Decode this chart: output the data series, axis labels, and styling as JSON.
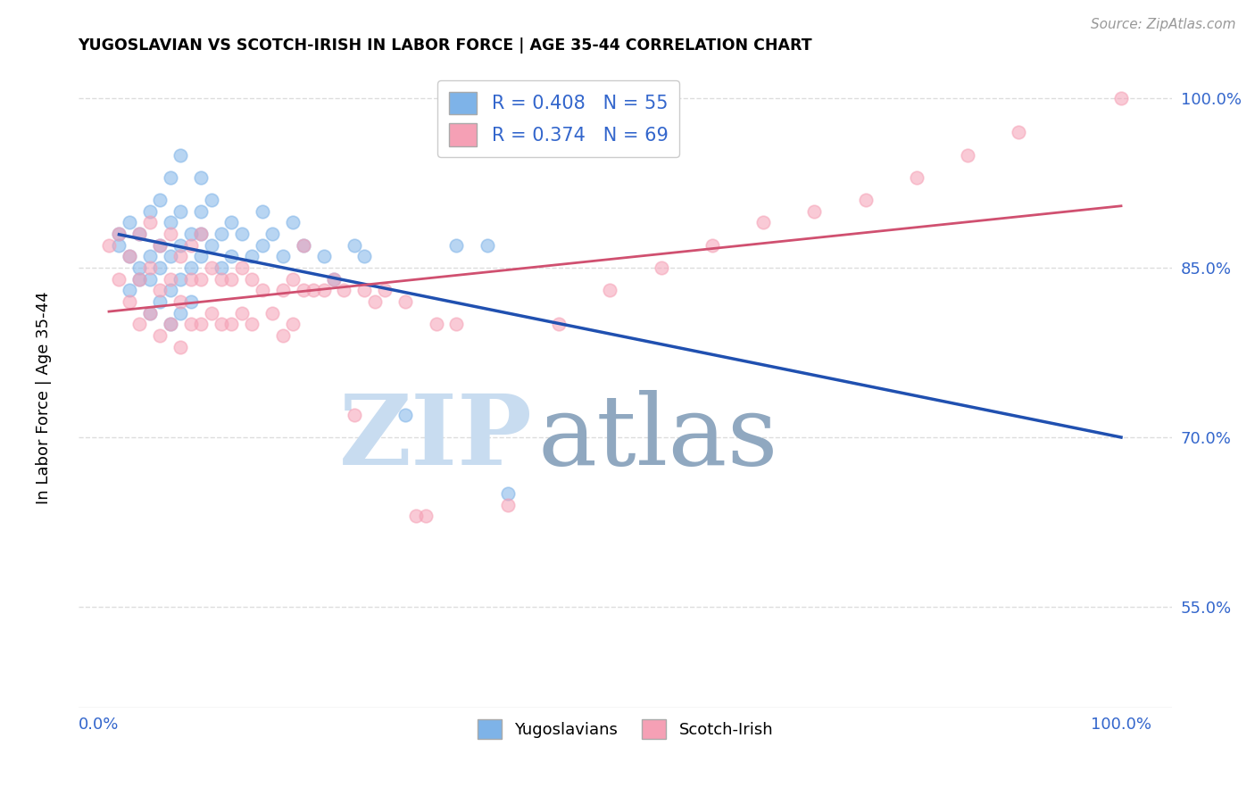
{
  "title": "YUGOSLAVIAN VS SCOTCH-IRISH IN LABOR FORCE | AGE 35-44 CORRELATION CHART",
  "source": "Source: ZipAtlas.com",
  "ylabel": "In Labor Force | Age 35-44",
  "r_blue": 0.408,
  "n_blue": 55,
  "r_pink": 0.374,
  "n_pink": 69,
  "blue_color": "#7EB3E8",
  "pink_color": "#F5A0B5",
  "blue_line_color": "#2050B0",
  "pink_line_color": "#D05070",
  "watermark_zip": "ZIP",
  "watermark_atlas": "atlas",
  "blue_scatter_x": [
    0.02,
    0.02,
    0.03,
    0.03,
    0.03,
    0.04,
    0.04,
    0.04,
    0.05,
    0.05,
    0.05,
    0.05,
    0.06,
    0.06,
    0.06,
    0.06,
    0.07,
    0.07,
    0.07,
    0.07,
    0.07,
    0.08,
    0.08,
    0.08,
    0.08,
    0.08,
    0.09,
    0.09,
    0.09,
    0.1,
    0.1,
    0.1,
    0.1,
    0.11,
    0.11,
    0.12,
    0.12,
    0.13,
    0.13,
    0.14,
    0.15,
    0.16,
    0.16,
    0.17,
    0.18,
    0.19,
    0.2,
    0.22,
    0.23,
    0.25,
    0.26,
    0.3,
    0.35,
    0.38,
    0.4
  ],
  "blue_scatter_y": [
    0.87,
    0.88,
    0.83,
    0.86,
    0.89,
    0.84,
    0.85,
    0.88,
    0.81,
    0.84,
    0.86,
    0.9,
    0.82,
    0.85,
    0.87,
    0.91,
    0.8,
    0.83,
    0.86,
    0.89,
    0.93,
    0.81,
    0.84,
    0.87,
    0.9,
    0.95,
    0.82,
    0.85,
    0.88,
    0.86,
    0.88,
    0.9,
    0.93,
    0.87,
    0.91,
    0.85,
    0.88,
    0.86,
    0.89,
    0.88,
    0.86,
    0.87,
    0.9,
    0.88,
    0.86,
    0.89,
    0.87,
    0.86,
    0.84,
    0.87,
    0.86,
    0.72,
    0.87,
    0.87,
    0.65
  ],
  "pink_scatter_x": [
    0.01,
    0.02,
    0.02,
    0.03,
    0.03,
    0.04,
    0.04,
    0.04,
    0.05,
    0.05,
    0.05,
    0.06,
    0.06,
    0.06,
    0.07,
    0.07,
    0.07,
    0.08,
    0.08,
    0.08,
    0.09,
    0.09,
    0.09,
    0.1,
    0.1,
    0.1,
    0.11,
    0.11,
    0.12,
    0.12,
    0.13,
    0.13,
    0.14,
    0.14,
    0.15,
    0.15,
    0.16,
    0.17,
    0.18,
    0.18,
    0.19,
    0.19,
    0.2,
    0.2,
    0.21,
    0.22,
    0.23,
    0.24,
    0.25,
    0.26,
    0.27,
    0.28,
    0.3,
    0.31,
    0.32,
    0.33,
    0.35,
    0.4,
    0.45,
    0.5,
    0.55,
    0.6,
    0.65,
    0.7,
    0.75,
    0.8,
    0.85,
    0.9,
    1.0
  ],
  "pink_scatter_y": [
    0.87,
    0.84,
    0.88,
    0.82,
    0.86,
    0.8,
    0.84,
    0.88,
    0.81,
    0.85,
    0.89,
    0.79,
    0.83,
    0.87,
    0.8,
    0.84,
    0.88,
    0.78,
    0.82,
    0.86,
    0.8,
    0.84,
    0.87,
    0.8,
    0.84,
    0.88,
    0.81,
    0.85,
    0.8,
    0.84,
    0.8,
    0.84,
    0.81,
    0.85,
    0.8,
    0.84,
    0.83,
    0.81,
    0.79,
    0.83,
    0.8,
    0.84,
    0.83,
    0.87,
    0.83,
    0.83,
    0.84,
    0.83,
    0.72,
    0.83,
    0.82,
    0.83,
    0.82,
    0.63,
    0.63,
    0.8,
    0.8,
    0.64,
    0.8,
    0.83,
    0.85,
    0.87,
    0.89,
    0.9,
    0.91,
    0.93,
    0.95,
    0.97,
    1.0
  ],
  "ylim": [
    0.46,
    1.03
  ],
  "xlim": [
    -0.02,
    1.05
  ],
  "grid_color": "#DDDDDD",
  "watermark_color": "#C8DCF0",
  "watermark_atlas_color": "#90A8C0",
  "text_color": "#3366CC"
}
